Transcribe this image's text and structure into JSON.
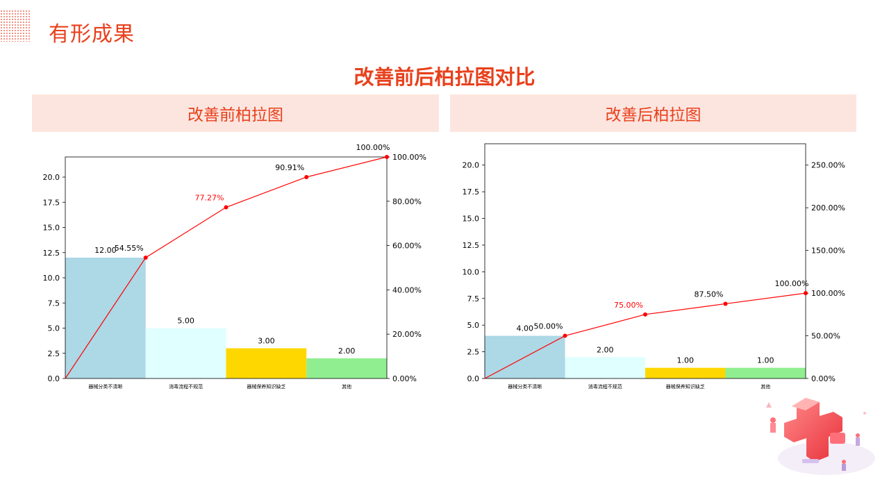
{
  "header": {
    "title": "有形成果"
  },
  "main_title": "改善前后柏拉图对比",
  "panels": [
    {
      "title": "改善前柏拉图"
    },
    {
      "title": "改善后柏拉图"
    }
  ],
  "colors": {
    "accent": "#e8401c",
    "bar_colors": [
      "#add8e6",
      "#e0ffff",
      "#ffd700",
      "#90ee90"
    ],
    "cumulative_line": "#ff0000"
  },
  "chart_data": [
    {
      "type": "bar",
      "categories": [
        "器械分类不清晰",
        "消毒流程不规范",
        "器械保养知识缺乏",
        "其他"
      ],
      "values": [
        12.0,
        5.0,
        3.0,
        2.0
      ],
      "value_labels": [
        "12.00",
        "5.00",
        "3.00",
        "2.00"
      ],
      "cumulative_percent": [
        0,
        54.55,
        77.27,
        90.91,
        100.0
      ],
      "cumulative_labels": [
        "54.55%",
        "77.27%",
        "90.91%",
        "100.00%"
      ],
      "ylim": [
        0,
        22
      ],
      "yticks": [
        "0.0",
        "2.5",
        "5.0",
        "7.5",
        "10.0",
        "12.5",
        "15.0",
        "17.5",
        "20.0"
      ],
      "y2lim": [
        0,
        100
      ],
      "y2ticks": [
        "0.00%",
        "20.00%",
        "40.00%",
        "60.00%",
        "80.00%",
        "100.00%"
      ],
      "grid": false
    },
    {
      "type": "bar",
      "categories": [
        "器械分类不清晰",
        "消毒流程不规范",
        "器械保养知识缺乏",
        "其他"
      ],
      "values": [
        4.0,
        2.0,
        1.0,
        1.0
      ],
      "value_labels": [
        "4.00",
        "2.00",
        "1.00",
        "1.00"
      ],
      "cumulative_percent": [
        0,
        50.0,
        75.0,
        87.5,
        100.0
      ],
      "cumulative_labels": [
        "50.00%",
        "75.00%",
        "87.50%",
        "100.00%"
      ],
      "ylim": [
        0,
        22
      ],
      "yticks": [
        "0.0",
        "2.5",
        "5.0",
        "7.5",
        "10.0",
        "12.5",
        "15.0",
        "17.5",
        "20.0"
      ],
      "y2lim": [
        0,
        275
      ],
      "y2ticks": [
        "0.00%",
        "50.00%",
        "100.00%",
        "150.00%",
        "200.00%",
        "250.00%"
      ],
      "grid": false
    }
  ]
}
